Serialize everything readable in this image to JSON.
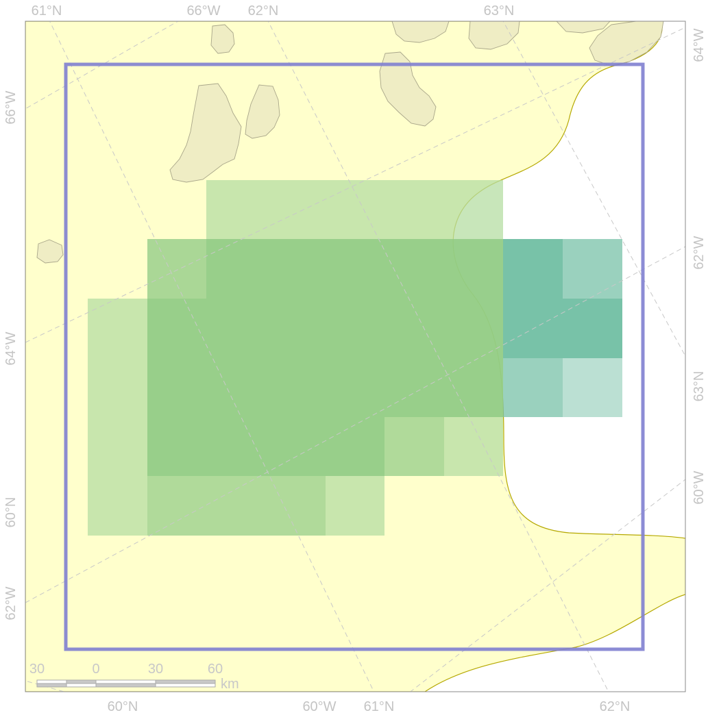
{
  "map": {
    "colors": {
      "page_bg": "#ffffff",
      "frame_bg": "#ffffff",
      "sea_zone": "#ffffcc",
      "sea_zone_outline": "#b5a800",
      "land": "#efedc4",
      "land_outline": "#a9a68a",
      "graticule": "#c8c8c8",
      "label": "#c4c4c4",
      "study_box": "#8080d0",
      "cell_light": "#b5dda3",
      "cell_mid": "#92cc86",
      "cell_dark": "#78c2a8"
    },
    "graticule_labels": {
      "top": [
        "61°N",
        "66°W",
        "62°N",
        "63°N"
      ],
      "bottom": [
        "60°N",
        "60°W",
        "61°N",
        "62°N"
      ],
      "left": [
        "66°W",
        "64°W",
        "60°N",
        "62°W"
      ],
      "right": [
        "64°W",
        "62°W",
        "63°N",
        "60°W"
      ]
    },
    "scale_bar": {
      "ticks": [
        "30",
        "0",
        "30",
        "60"
      ],
      "unit": "km"
    }
  }
}
